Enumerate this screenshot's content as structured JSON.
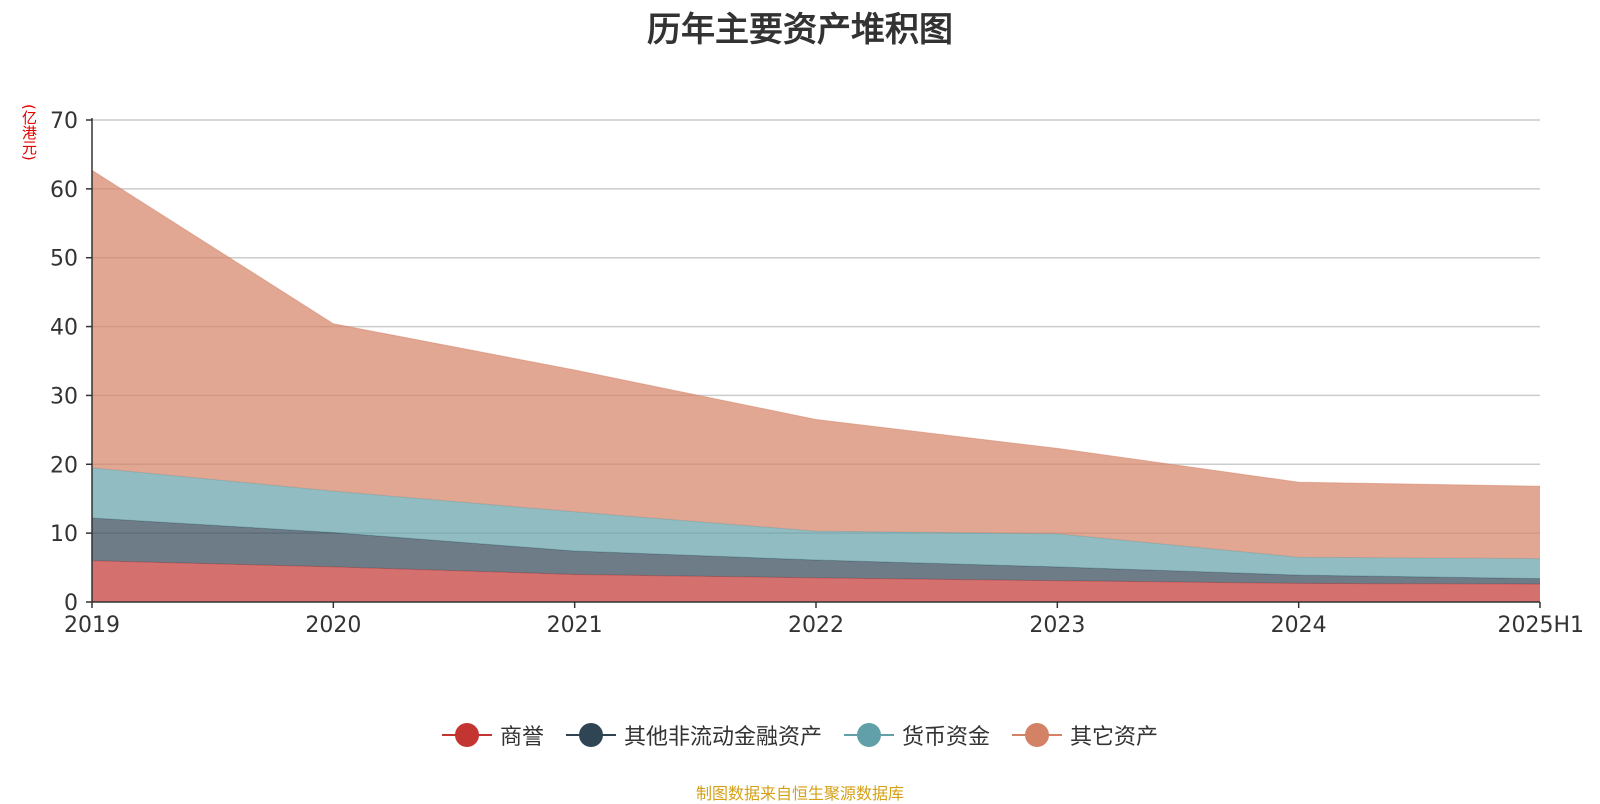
{
  "unit": "(亿港元)",
  "source_note": "制图数据来自恒生聚源数据库",
  "chart_data": {
    "type": "area",
    "stacked": true,
    "title": "历年主要资产堆积图",
    "xlabel": "",
    "ylabel": "(亿港元)",
    "categories": [
      "2019",
      "2020",
      "2021",
      "2022",
      "2023",
      "2024",
      "2025H1"
    ],
    "ylim": [
      0,
      70
    ],
    "yticks": [
      0,
      10,
      20,
      30,
      40,
      50,
      60,
      70
    ],
    "grid": true,
    "legend_position": "bottom",
    "series": [
      {
        "name": "商誉",
        "color": "#c23531",
        "values": [
          6.0,
          5.1,
          4.0,
          3.5,
          3.1,
          2.7,
          2.6
        ]
      },
      {
        "name": "其他非流动金融资产",
        "color": "#2f4554",
        "values": [
          6.2,
          5.0,
          3.4,
          2.6,
          2.0,
          1.2,
          0.8
        ]
      },
      {
        "name": "货币资金",
        "color": "#61a0a8",
        "values": [
          7.3,
          6.0,
          5.7,
          4.2,
          4.8,
          2.6,
          2.9
        ]
      },
      {
        "name": "其它资产",
        "color": "#d48265",
        "values": [
          43.2,
          24.3,
          20.6,
          16.2,
          12.4,
          10.9,
          10.5
        ]
      }
    ]
  }
}
